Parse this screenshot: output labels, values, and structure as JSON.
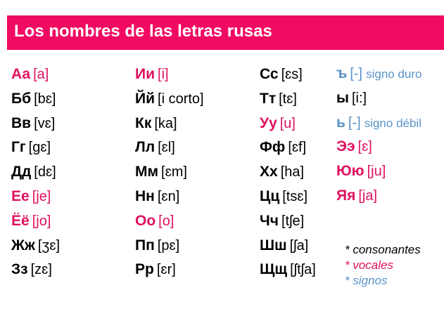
{
  "title": "Los nombres de las letras rusas",
  "colors": {
    "banner": "#f10a61",
    "vowel": "#e0115f",
    "sign": "#5b93c9",
    "consonant": "#000000"
  },
  "columns": [
    [
      {
        "letter": "Аа",
        "ipa": "[a]",
        "type": "vowel"
      },
      {
        "letter": "Бб",
        "ipa": "[bɛ]",
        "type": "consonant"
      },
      {
        "letter": "Вв",
        "ipa": "[vɛ]",
        "type": "consonant"
      },
      {
        "letter": "Гг",
        "ipa": "[gɛ]",
        "type": "consonant"
      },
      {
        "letter": "Дд",
        "ipa": "[dɛ]",
        "type": "consonant"
      },
      {
        "letter": "Ее",
        "ipa": "[je]",
        "type": "vowel"
      },
      {
        "letter": "Ёё",
        "ipa": "[jo]",
        "type": "vowel"
      },
      {
        "letter": "Жж",
        "ipa": "[ʒɛ]",
        "type": "consonant"
      },
      {
        "letter": "Зз",
        "ipa": "[zɛ]",
        "type": "consonant"
      }
    ],
    [
      {
        "letter": "Ии",
        "ipa": "[i]",
        "type": "vowel"
      },
      {
        "letter": "Йй",
        "ipa": "[i corto]",
        "type": "consonant"
      },
      {
        "letter": "Кк",
        "ipa": "[ka]",
        "type": "consonant"
      },
      {
        "letter": "Лл",
        "ipa": "[ɛl]",
        "type": "consonant"
      },
      {
        "letter": "Мм",
        "ipa": "[ɛm]",
        "type": "consonant"
      },
      {
        "letter": "Нн",
        "ipa": "[ɛn]",
        "type": "consonant"
      },
      {
        "letter": "Оо",
        "ipa": "[o]",
        "type": "vowel"
      },
      {
        "letter": "Пп",
        "ipa": "[pɛ]",
        "type": "consonant"
      },
      {
        "letter": "Рр",
        "ipa": "[ɛr]",
        "type": "consonant"
      }
    ],
    [
      {
        "letter": "Сс",
        "ipa": "[ɛs]",
        "type": "consonant"
      },
      {
        "letter": "Тт",
        "ipa": "[tɛ]",
        "type": "consonant"
      },
      {
        "letter": "Уу",
        "ipa": "[u]",
        "type": "vowel"
      },
      {
        "letter": "Фф",
        "ipa": "[ɛf]",
        "type": "consonant"
      },
      {
        "letter": "Хх",
        "ipa": "[ha]",
        "type": "consonant"
      },
      {
        "letter": "Цц",
        "ipa": "[tsɛ]",
        "type": "consonant"
      },
      {
        "letter": "Чч",
        "ipa": "[tʃe]",
        "type": "consonant"
      },
      {
        "letter": "Шш",
        "ipa": "[ʃa]",
        "type": "consonant"
      },
      {
        "letter": "Щщ",
        "ipa": "[ʃtʃa]",
        "type": "consonant"
      }
    ],
    [
      {
        "letter": "ъ",
        "ipa": "[-]",
        "note": "signo duro",
        "type": "sign"
      },
      {
        "letter": "ы",
        "ipa": "[i:]",
        "type": "consonant"
      },
      {
        "letter": "ь",
        "ipa": "[-]",
        "note": "signo débil",
        "type": "sign"
      },
      {
        "letter": "Ээ",
        "ipa": "[ɛ]",
        "type": "vowel"
      },
      {
        "letter": "Юю",
        "ipa": "[ju]",
        "type": "vowel"
      },
      {
        "letter": "Яя",
        "ipa": "[ja]",
        "type": "vowel"
      }
    ]
  ],
  "legend": [
    {
      "text": "* consonantes",
      "type": "consonant"
    },
    {
      "text": "* vocales",
      "type": "vowel"
    },
    {
      "text": "* signos",
      "type": "sign"
    }
  ]
}
